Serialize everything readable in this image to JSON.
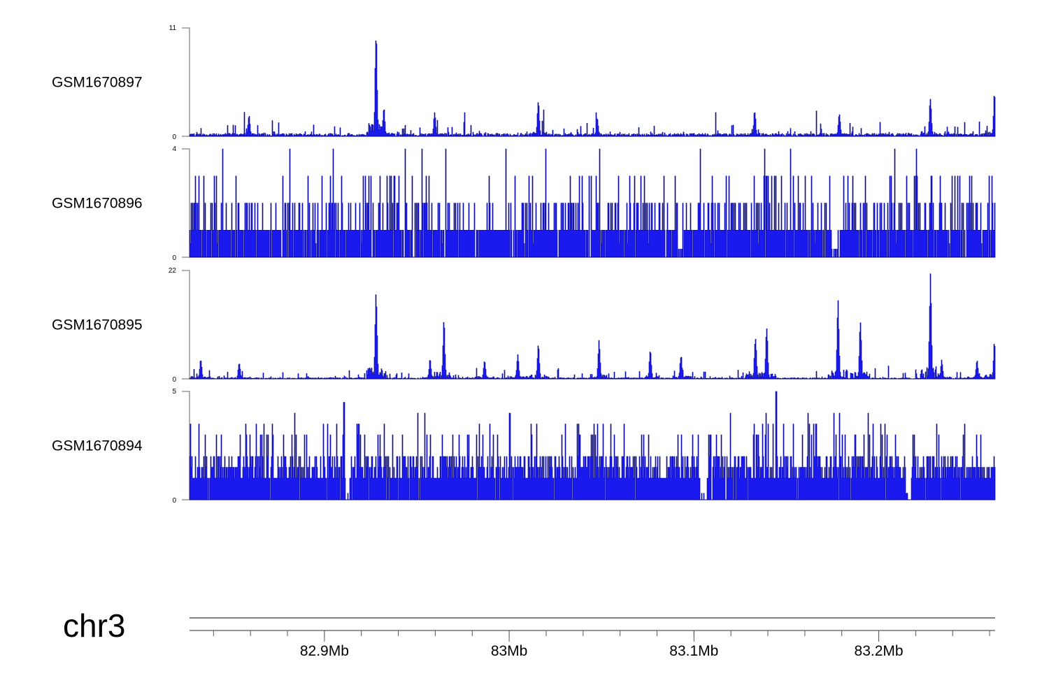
{
  "chart_data": {
    "type": "area",
    "title": "",
    "chromosome": "chr3",
    "xlim_mb": [
      82.827,
      83.263
    ],
    "x_ticks": [
      {
        "value": 82.9,
        "label": "82.9Mb"
      },
      {
        "value": 83.0,
        "label": "83Mb"
      },
      {
        "value": 83.1,
        "label": "83.1Mb"
      },
      {
        "value": 83.2,
        "label": "83.2Mb"
      }
    ],
    "minor_tick_step_mb": 0.02,
    "colors": {
      "fill": "#1a1aee",
      "stroke": "#00008b",
      "axis": "#555555"
    },
    "tracks": [
      {
        "name": "GSM1670897",
        "ylim": [
          0,
          11
        ],
        "y_ticks": [
          "0",
          "11"
        ],
        "style": "continuous",
        "baseline": 0.5,
        "spike_max": 2.5,
        "seed": 11,
        "peaks": [
          [
            82.9278,
            11
          ],
          [
            82.932,
            3
          ],
          [
            83.0156,
            3.7
          ],
          [
            83.2278,
            4.2
          ],
          [
            83.2625,
            4.8
          ],
          [
            83.1327,
            2.7
          ],
          [
            83.1785,
            2.5
          ],
          [
            82.859,
            2.3
          ],
          [
            82.9595,
            2.5
          ],
          [
            83.0475,
            2.0
          ]
        ]
      },
      {
        "name": "GSM1670896",
        "ylim": [
          0,
          4
        ],
        "y_ticks": [
          "0",
          "4"
        ],
        "style": "discrete",
        "levels": [
          1,
          2,
          3,
          4
        ],
        "level_probs": [
          0.85,
          0.22,
          0.06,
          0.015
        ],
        "gaps_mb": [
          [
            83.091,
            83.094
          ],
          [
            83.1745,
            83.178
          ]
        ],
        "seed": 22,
        "peaks": []
      },
      {
        "name": "GSM1670895",
        "ylim": [
          0,
          22
        ],
        "y_ticks": [
          "0",
          "22"
        ],
        "style": "continuous",
        "baseline": 0.4,
        "spike_max": 3,
        "seed": 33,
        "peaks": [
          [
            82.9278,
            19
          ],
          [
            82.9645,
            12
          ],
          [
            83.0156,
            7
          ],
          [
            83.0485,
            8
          ],
          [
            83.0762,
            6
          ],
          [
            83.0928,
            5
          ],
          [
            83.1331,
            9.5
          ],
          [
            83.1392,
            11
          ],
          [
            83.1778,
            16
          ],
          [
            83.1899,
            12
          ],
          [
            83.2278,
            22
          ],
          [
            83.2625,
            8
          ],
          [
            83.253,
            4
          ],
          [
            83.0045,
            5
          ],
          [
            82.9865,
            4
          ],
          [
            82.8329,
            4
          ],
          [
            82.8537,
            3.5
          ],
          [
            82.957,
            4
          ],
          [
            83.2339,
            4
          ]
        ]
      },
      {
        "name": "GSM1670894",
        "ylim": [
          0,
          5
        ],
        "y_ticks": [
          "0",
          "5"
        ],
        "style": "discrete",
        "levels": [
          1,
          1.5,
          2,
          3,
          3.5,
          4
        ],
        "level_probs": [
          0.9,
          0.45,
          0.25,
          0.08,
          0.03,
          0.012
        ],
        "gaps_mb": [
          [
            82.9115,
            82.9135
          ],
          [
            83.1035,
            83.107
          ],
          [
            83.2145,
            83.2175
          ]
        ],
        "seed": 44,
        "peaks": [
          [
            83.1445,
            5
          ],
          [
            82.9105,
            4.5
          ],
          [
            83.0,
            4
          ]
        ]
      }
    ]
  }
}
